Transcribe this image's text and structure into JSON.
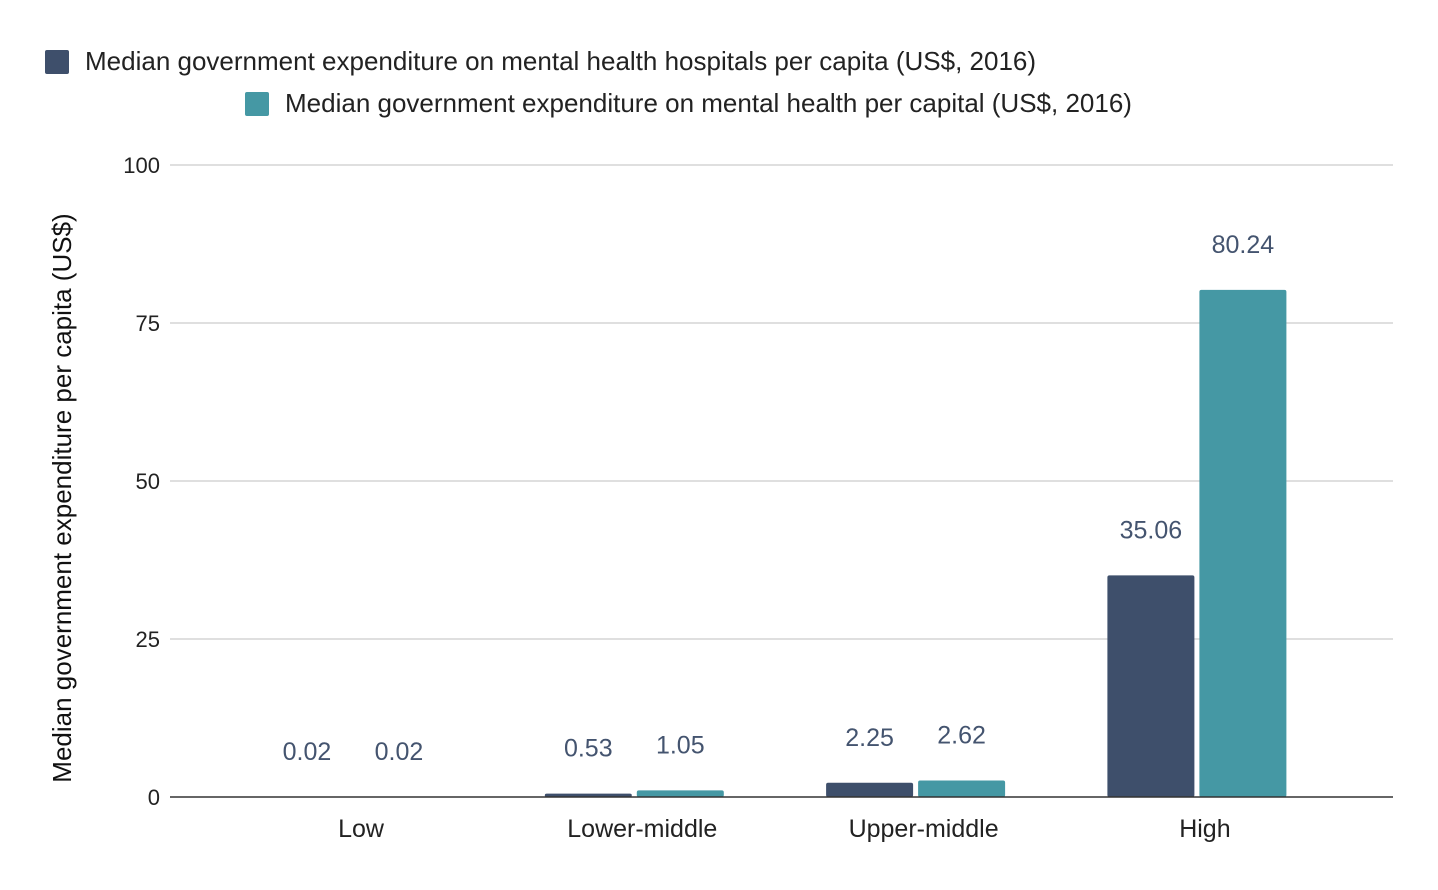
{
  "chart_data": {
    "type": "bar",
    "title": "",
    "xlabel": "",
    "ylabel": "Median government expenditure per capita (US$)",
    "categories": [
      "Low",
      "Lower-middle",
      "Upper-middle",
      "High"
    ],
    "series": [
      {
        "name": "Median government expenditure on mental health hospitals per capita (US$, 2016)",
        "color": "#3e4f6b",
        "values": [
          0.02,
          0.53,
          2.25,
          35.06
        ],
        "labels": [
          "0.02",
          "0.53",
          "2.25",
          "35.06"
        ]
      },
      {
        "name": "Median government expenditure on mental health per capital (US$, 2016)",
        "color": "#4598a4",
        "values": [
          0.02,
          1.05,
          2.62,
          80.24
        ],
        "labels": [
          "0.02",
          "1.05",
          "2.62",
          "80.24"
        ]
      }
    ],
    "ylim": [
      0,
      100
    ],
    "yticks": [
      0,
      25,
      50,
      75,
      100
    ],
    "ytick_labels": [
      "0",
      "25",
      "50",
      "75",
      "100"
    ],
    "grid": true,
    "legend_position": "top",
    "value_label_color": "#44546f",
    "grid_color": "#cccccc",
    "axis_color": "#333333"
  }
}
